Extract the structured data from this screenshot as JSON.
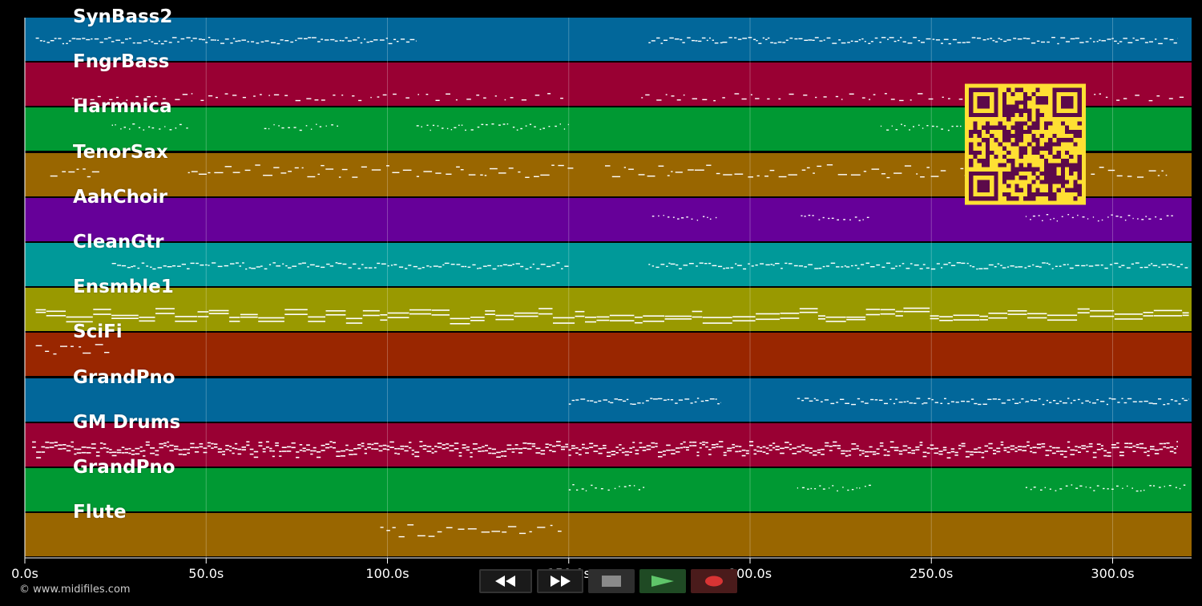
{
  "app": {
    "copyright": "© www.midifiles.com"
  },
  "timeline": {
    "max_seconds": 321,
    "ticks": [
      {
        "seconds": 0,
        "label": "0.0s"
      },
      {
        "seconds": 50,
        "label": "50.0s"
      },
      {
        "seconds": 100,
        "label": "100.0s"
      },
      {
        "seconds": 150,
        "label": "150.0s"
      },
      {
        "seconds": 200,
        "label": "200.0s"
      },
      {
        "seconds": 250,
        "label": "250.0s"
      },
      {
        "seconds": 300,
        "label": "300.0s"
      }
    ]
  },
  "tracks": [
    {
      "name": "SynBass2",
      "color": "#02679a",
      "segments": [
        [
          3,
          108
        ],
        [
          172,
          318
        ]
      ],
      "style": "dense"
    },
    {
      "name": "FngrBass",
      "color": "#990033",
      "segments": [
        [
          13,
          150
        ],
        [
          170,
          321
        ]
      ],
      "style": "sparse"
    },
    {
      "name": "Harmnica",
      "color": "#009933",
      "segments": [
        [
          24,
          45
        ],
        [
          66,
          87
        ],
        [
          108,
          150
        ],
        [
          236,
          282
        ]
      ],
      "style": "dotted"
    },
    {
      "name": "TenorSax",
      "color": "#996600",
      "segments": [
        [
          7,
          21
        ],
        [
          45,
          152
        ],
        [
          160,
          254
        ],
        [
          258,
          266
        ],
        [
          294,
          315
        ]
      ],
      "style": "melody"
    },
    {
      "name": "AahChoir",
      "color": "#660099",
      "segments": [
        [
          173,
          191
        ],
        [
          214,
          233
        ],
        [
          276,
          317
        ]
      ],
      "style": "dotted"
    },
    {
      "name": "CleanGtr",
      "color": "#009999",
      "segments": [
        [
          24,
          150
        ],
        [
          172,
          321
        ]
      ],
      "style": "dense"
    },
    {
      "name": "Ensmble1",
      "color": "#999900",
      "segments": [
        [
          3,
          321
        ]
      ],
      "style": "chords"
    },
    {
      "name": "SciFi",
      "color": "#992600",
      "segments": [
        [
          3,
          24
        ]
      ],
      "style": "melody"
    },
    {
      "name": "GrandPno",
      "color": "#02679a",
      "segments": [
        [
          150,
          192
        ],
        [
          213,
          276
        ],
        [
          276,
          321
        ]
      ],
      "style": "dense"
    },
    {
      "name": "GM Drums",
      "color": "#990033",
      "segments": [
        [
          2,
          24
        ],
        [
          24,
          318
        ]
      ],
      "style": "drums"
    },
    {
      "name": "GrandPno",
      "color": "#009933",
      "segments": [
        [
          150,
          171
        ],
        [
          213,
          234
        ],
        [
          276,
          321
        ]
      ],
      "style": "dotted"
    },
    {
      "name": "Flute",
      "color": "#996600",
      "segments": [
        [
          98,
          148
        ]
      ],
      "style": "melody"
    }
  ],
  "controls": {
    "rewind": "rewind-icon",
    "forward": "fast-forward-icon",
    "stop": "stop-icon",
    "play": "play-icon",
    "record": "record-icon"
  },
  "colors": {
    "background": "#000000",
    "note": "#ffffff",
    "qr_fg": "#5c0a4a",
    "qr_bg": "#ffe033"
  }
}
